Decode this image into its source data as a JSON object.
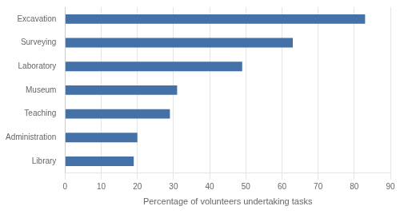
{
  "chart_data": {
    "type": "bar",
    "orientation": "horizontal",
    "categories": [
      "Library",
      "Administration",
      "Teaching",
      "Museum",
      "Laboratory",
      "Surveying",
      "Excavation"
    ],
    "values": [
      19,
      20,
      29,
      31,
      49,
      63,
      83
    ],
    "color": "#4472a8",
    "xlabel": "Percentage of volunteers undertaking tasks",
    "xlim": [
      0,
      90
    ],
    "xticks": [
      0,
      10,
      20,
      30,
      40,
      50,
      60,
      70,
      80,
      90
    ],
    "grid": true
  }
}
